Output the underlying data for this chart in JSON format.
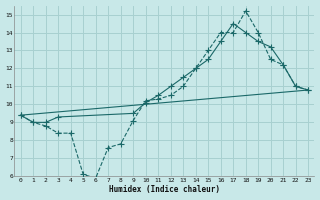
{
  "xlabel": "Humidex (Indice chaleur)",
  "xlim": [
    -0.5,
    23.5
  ],
  "ylim": [
    6,
    15.5
  ],
  "yticks": [
    6,
    7,
    8,
    9,
    10,
    11,
    12,
    13,
    14,
    15
  ],
  "xticks": [
    0,
    1,
    2,
    3,
    4,
    5,
    6,
    7,
    8,
    9,
    10,
    11,
    12,
    13,
    14,
    15,
    16,
    17,
    18,
    19,
    20,
    21,
    22,
    23
  ],
  "bg_color": "#c8e8e8",
  "grid_color": "#a8d0d0",
  "line_color": "#1a6868",
  "line1_x": [
    0,
    1,
    2,
    3,
    4,
    5,
    6,
    7,
    8,
    9,
    10,
    11,
    12,
    13,
    14,
    15,
    16,
    17,
    18,
    19,
    20,
    21,
    22,
    23
  ],
  "line1_y": [
    9.4,
    9.0,
    8.8,
    8.4,
    8.4,
    6.1,
    5.9,
    7.6,
    7.8,
    9.1,
    10.2,
    10.3,
    10.5,
    11.0,
    12.0,
    13.0,
    14.0,
    14.0,
    15.2,
    14.0,
    12.5,
    12.2,
    11.0,
    10.8
  ],
  "line2_x": [
    0,
    1,
    2,
    3,
    9,
    10,
    11,
    12,
    13,
    14,
    15,
    16,
    17,
    18,
    19,
    20,
    21,
    22,
    23
  ],
  "line2_y": [
    9.4,
    9.0,
    9.0,
    9.3,
    9.5,
    10.1,
    10.5,
    11.0,
    11.5,
    12.0,
    12.5,
    13.5,
    14.5,
    14.0,
    13.5,
    13.2,
    12.2,
    11.0,
    10.8
  ],
  "line3_x": [
    0,
    23
  ],
  "line3_y": [
    9.4,
    10.8
  ]
}
